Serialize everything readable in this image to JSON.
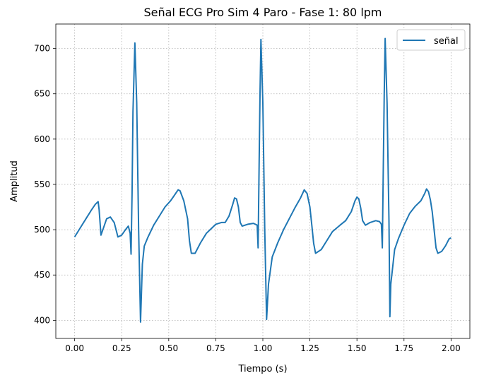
{
  "chart_data": {
    "type": "line",
    "title": "Señal ECG Pro Sim 4 Paro - Fase 1: 80 lpm",
    "xlabel": "Tiempo (s)",
    "ylabel": "Amplitud",
    "xlim": [
      -0.1,
      2.1
    ],
    "ylim": [
      380,
      727
    ],
    "xticks": [
      0.0,
      0.25,
      0.5,
      0.75,
      1.0,
      1.25,
      1.5,
      1.75,
      2.0
    ],
    "xtick_labels": [
      "0.00",
      "0.25",
      "0.50",
      "0.75",
      "1.00",
      "1.25",
      "1.50",
      "1.75",
      "2.00"
    ],
    "yticks": [
      400,
      450,
      500,
      550,
      600,
      650,
      700
    ],
    "ytick_labels": [
      "400",
      "450",
      "500",
      "550",
      "600",
      "650",
      "700"
    ],
    "grid": true,
    "legend": {
      "position": "top-right",
      "entries": [
        "señal"
      ]
    },
    "series": [
      {
        "name": "señal",
        "color": "#1f77b4",
        "points": [
          [
            0.0,
            492
          ],
          [
            0.03,
            502
          ],
          [
            0.06,
            512
          ],
          [
            0.09,
            522
          ],
          [
            0.11,
            528
          ],
          [
            0.125,
            531
          ],
          [
            0.13,
            522
          ],
          [
            0.14,
            494
          ],
          [
            0.15,
            500
          ],
          [
            0.17,
            512
          ],
          [
            0.19,
            514
          ],
          [
            0.21,
            508
          ],
          [
            0.23,
            492
          ],
          [
            0.25,
            494
          ],
          [
            0.27,
            500
          ],
          [
            0.285,
            504
          ],
          [
            0.295,
            496
          ],
          [
            0.3,
            473
          ],
          [
            0.305,
            540
          ],
          [
            0.31,
            630
          ],
          [
            0.32,
            706
          ],
          [
            0.33,
            640
          ],
          [
            0.34,
            500
          ],
          [
            0.35,
            398
          ],
          [
            0.36,
            462
          ],
          [
            0.37,
            482
          ],
          [
            0.39,
            492
          ],
          [
            0.42,
            505
          ],
          [
            0.45,
            515
          ],
          [
            0.48,
            525
          ],
          [
            0.51,
            532
          ],
          [
            0.53,
            538
          ],
          [
            0.55,
            544
          ],
          [
            0.56,
            543
          ],
          [
            0.58,
            532
          ],
          [
            0.6,
            512
          ],
          [
            0.61,
            488
          ],
          [
            0.62,
            474
          ],
          [
            0.64,
            474
          ],
          [
            0.67,
            486
          ],
          [
            0.7,
            496
          ],
          [
            0.73,
            502
          ],
          [
            0.75,
            506
          ],
          [
            0.78,
            508
          ],
          [
            0.8,
            508
          ],
          [
            0.82,
            515
          ],
          [
            0.84,
            528
          ],
          [
            0.85,
            535
          ],
          [
            0.86,
            534
          ],
          [
            0.87,
            525
          ],
          [
            0.88,
            508
          ],
          [
            0.89,
            504
          ],
          [
            0.92,
            506
          ],
          [
            0.95,
            507
          ],
          [
            0.97,
            505
          ],
          [
            0.975,
            480
          ],
          [
            0.98,
            570
          ],
          [
            0.985,
            650
          ],
          [
            0.99,
            710
          ],
          [
            1.0,
            640
          ],
          [
            1.01,
            500
          ],
          [
            1.02,
            401
          ],
          [
            1.03,
            440
          ],
          [
            1.05,
            470
          ],
          [
            1.08,
            486
          ],
          [
            1.11,
            500
          ],
          [
            1.14,
            512
          ],
          [
            1.17,
            524
          ],
          [
            1.2,
            535
          ],
          [
            1.22,
            544
          ],
          [
            1.235,
            540
          ],
          [
            1.25,
            525
          ],
          [
            1.26,
            505
          ],
          [
            1.27,
            485
          ],
          [
            1.28,
            474
          ],
          [
            1.31,
            478
          ],
          [
            1.34,
            488
          ],
          [
            1.37,
            498
          ],
          [
            1.41,
            505
          ],
          [
            1.44,
            510
          ],
          [
            1.47,
            520
          ],
          [
            1.49,
            532
          ],
          [
            1.5,
            536
          ],
          [
            1.51,
            534
          ],
          [
            1.52,
            524
          ],
          [
            1.53,
            510
          ],
          [
            1.545,
            505
          ],
          [
            1.57,
            508
          ],
          [
            1.6,
            510
          ],
          [
            1.62,
            509
          ],
          [
            1.63,
            506
          ],
          [
            1.635,
            480
          ],
          [
            1.64,
            570
          ],
          [
            1.645,
            650
          ],
          [
            1.65,
            711
          ],
          [
            1.66,
            640
          ],
          [
            1.67,
            510
          ],
          [
            1.675,
            404
          ],
          [
            1.68,
            440
          ],
          [
            1.7,
            478
          ],
          [
            1.72,
            490
          ],
          [
            1.75,
            505
          ],
          [
            1.78,
            518
          ],
          [
            1.81,
            526
          ],
          [
            1.84,
            532
          ],
          [
            1.86,
            540
          ],
          [
            1.87,
            545
          ],
          [
            1.88,
            542
          ],
          [
            1.89,
            533
          ],
          [
            1.9,
            520
          ],
          [
            1.91,
            500
          ],
          [
            1.92,
            480
          ],
          [
            1.93,
            474
          ],
          [
            1.95,
            476
          ],
          [
            1.97,
            482
          ],
          [
            1.99,
            490
          ],
          [
            2.0,
            491
          ]
        ]
      }
    ]
  }
}
